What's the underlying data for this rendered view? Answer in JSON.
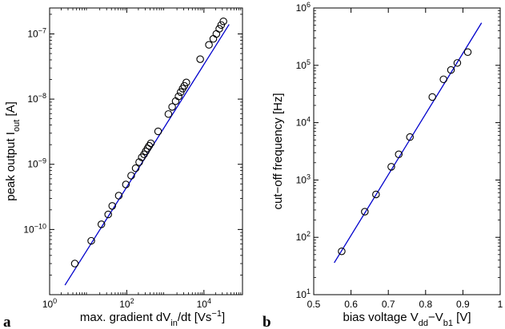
{
  "chart_data": [
    {
      "type": "scatter",
      "panel_label": "a",
      "xlabel": "max. gradient  dV_in/dt [Vs^-1]",
      "xlabel_parts": [
        "max. gradient  dV",
        "in",
        "/dt [Vs",
        "−1",
        "]"
      ],
      "ylabel": "peak output I_out  [A]",
      "ylabel_parts": [
        "peak output I",
        "out",
        "  [A]"
      ],
      "xscale": "log",
      "yscale": "log",
      "xlim": [
        1,
        100000
      ],
      "ylim": [
        1e-11,
        2.5e-07
      ],
      "xticks": [
        {
          "value": 1,
          "label": "10",
          "exp": "0"
        },
        {
          "value": 100,
          "label": "10",
          "exp": "2"
        },
        {
          "value": 10000,
          "label": "10",
          "exp": "4"
        }
      ],
      "yticks": [
        {
          "value": 1e-10,
          "label": "10",
          "exp": "−10"
        },
        {
          "value": 1e-09,
          "label": "10",
          "exp": "−9"
        },
        {
          "value": 1e-08,
          "label": "10",
          "exp": "−8"
        },
        {
          "value": 1e-07,
          "label": "10",
          "exp": "−7"
        }
      ],
      "grid": false,
      "fit_line": {
        "x": [
          2.5,
          45000
        ],
        "y": [
          1.4e-11,
          1.4e-07
        ],
        "color": "#0000cc"
      },
      "series": [
        {
          "marker": "circle",
          "x": [
            4.5,
            12,
            22,
            33,
            42,
            62,
            95,
            130,
            170,
            210,
            245,
            280,
            310,
            345,
            380,
            420,
            650,
            1200,
            1500,
            1850,
            2200,
            2500,
            2800,
            3100,
            3500,
            8000,
            13500,
            17500,
            21000,
            25000,
            28000,
            32000
          ],
          "y": [
            3e-11,
            6.7e-11,
            1.2e-10,
            1.7e-10,
            2.3e-10,
            3.3e-10,
            4.9e-10,
            6.7e-10,
            8.7e-10,
            1.08e-09,
            1.28e-09,
            1.42e-09,
            1.58e-09,
            1.75e-09,
            1.92e-09,
            2.1e-09,
            3.2e-09,
            5.9e-09,
            7.6e-09,
            9.3e-09,
            1.1e-08,
            1.28e-08,
            1.45e-08,
            1.6e-08,
            1.8e-08,
            4.1e-08,
            6.8e-08,
            8.4e-08,
            1e-07,
            1.2e-07,
            1.37e-07,
            1.56e-07
          ]
        }
      ]
    },
    {
      "type": "scatter",
      "panel_label": "b",
      "xlabel": "bias voltage V_dd−V_b1  [V]",
      "xlabel_parts": [
        "bias voltage V",
        "dd",
        "−V",
        "b1",
        "  [V]"
      ],
      "ylabel": "cut−off frequency  [Hz]",
      "xscale": "linear",
      "yscale": "log",
      "xlim": [
        0.5,
        1.0
      ],
      "ylim": [
        10,
        1000000
      ],
      "xticks": [
        {
          "value": 0.5,
          "label": "0.5"
        },
        {
          "value": 0.6,
          "label": "0.6"
        },
        {
          "value": 0.7,
          "label": "0.7"
        },
        {
          "value": 0.8,
          "label": "0.8"
        },
        {
          "value": 0.9,
          "label": "0.9"
        },
        {
          "value": 1.0,
          "label": "1"
        }
      ],
      "yticks": [
        {
          "value": 10,
          "label": "10",
          "exp": "1"
        },
        {
          "value": 100,
          "label": "10",
          "exp": "2"
        },
        {
          "value": 1000,
          "label": "10",
          "exp": "3"
        },
        {
          "value": 10000,
          "label": "10",
          "exp": "4"
        },
        {
          "value": 100000,
          "label": "10",
          "exp": "5"
        },
        {
          "value": 1000000,
          "label": "10",
          "exp": "6"
        }
      ],
      "grid": false,
      "fit_line": {
        "x": [
          0.555,
          0.95
        ],
        "y": [
          36,
          550000
        ],
        "color": "#0000cc"
      },
      "series": [
        {
          "marker": "circle",
          "x": [
            0.575,
            0.637,
            0.667,
            0.708,
            0.728,
            0.758,
            0.818,
            0.848,
            0.868,
            0.885,
            0.913
          ],
          "y": [
            57,
            280,
            560,
            1700,
            2800,
            5600,
            28000,
            57000,
            83000,
            110000,
            170000
          ]
        }
      ]
    }
  ]
}
